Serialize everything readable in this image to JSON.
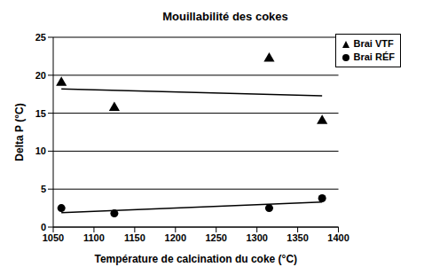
{
  "chart_data": {
    "type": "scatter",
    "title": "Mouillabilité des cokes",
    "x_label": "Température de calcination du coke (°C)",
    "y_label": "Delta P (°C)",
    "series": [
      {
        "name": "Brai VTF",
        "color": "#000000",
        "marker": "triangle",
        "x": [
          1060,
          1125,
          1315,
          1380
        ],
        "values": [
          19,
          15.7,
          22.2,
          14
        ],
        "trendline": {
          "x": [
            1060,
            1380
          ],
          "values": [
            18.2,
            17.3
          ]
        }
      },
      {
        "name": "Brai RÉF",
        "color": "#000000",
        "marker": "circle",
        "x": [
          1060,
          1125,
          1315,
          1380
        ],
        "values": [
          2.5,
          1.8,
          2.5,
          3.8
        ],
        "trendline": {
          "x": [
            1060,
            1380
          ],
          "values": [
            1.9,
            3.3
          ]
        }
      }
    ],
    "xlim": [
      1050,
      1400
    ],
    "xticks": [
      1050,
      1100,
      1150,
      1200,
      1250,
      1300,
      1350,
      1400
    ],
    "ylim": [
      0,
      25
    ],
    "yticks": [
      0,
      5,
      10,
      15,
      20,
      25
    ],
    "grid": true,
    "legend": "upper right"
  }
}
